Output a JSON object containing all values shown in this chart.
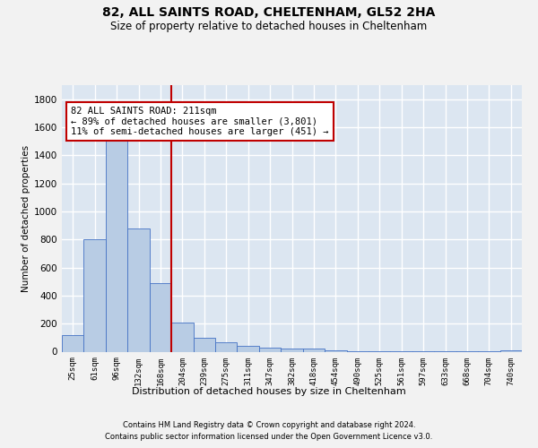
{
  "title": "82, ALL SAINTS ROAD, CHELTENHAM, GL52 2HA",
  "subtitle": "Size of property relative to detached houses in Cheltenham",
  "xlabel": "Distribution of detached houses by size in Cheltenham",
  "ylabel": "Number of detached properties",
  "categories": [
    "25sqm",
    "61sqm",
    "96sqm",
    "132sqm",
    "168sqm",
    "204sqm",
    "239sqm",
    "275sqm",
    "311sqm",
    "347sqm",
    "382sqm",
    "418sqm",
    "454sqm",
    "490sqm",
    "525sqm",
    "561sqm",
    "597sqm",
    "633sqm",
    "668sqm",
    "704sqm",
    "740sqm"
  ],
  "values": [
    120,
    800,
    1520,
    880,
    490,
    205,
    100,
    65,
    40,
    30,
    25,
    20,
    10,
    5,
    3,
    2,
    1,
    1,
    1,
    1,
    10
  ],
  "bar_color": "#b8cce4",
  "bar_edge_color": "#4472c4",
  "vline_color": "#c00000",
  "annotation_text": "82 ALL SAINTS ROAD: 211sqm\n← 89% of detached houses are smaller (3,801)\n11% of semi-detached houses are larger (451) →",
  "annotation_box_color": "#ffffff",
  "annotation_box_edge": "#c00000",
  "ylim": [
    0,
    1900
  ],
  "yticks": [
    0,
    200,
    400,
    600,
    800,
    1000,
    1200,
    1400,
    1600,
    1800
  ],
  "footer_line1": "Contains HM Land Registry data © Crown copyright and database right 2024.",
  "footer_line2": "Contains public sector information licensed under the Open Government Licence v3.0.",
  "bg_color": "#dce6f1",
  "fig_bg_color": "#f2f2f2",
  "grid_color": "#ffffff",
  "vline_index": 4.5
}
